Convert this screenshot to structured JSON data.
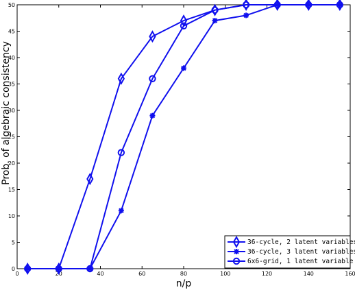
{
  "chart_data": {
    "type": "line",
    "xlabel": "n/p",
    "ylabel": "Prob. of algebraic consistency",
    "xlim": [
      0,
      160
    ],
    "ylim": [
      0,
      50
    ],
    "xticks": [
      0,
      20,
      40,
      60,
      80,
      100,
      120,
      140,
      160
    ],
    "yticks": [
      0,
      5,
      10,
      15,
      20,
      25,
      30,
      35,
      40,
      45,
      50
    ],
    "grid": false,
    "legend": "bottom-right",
    "line_color": "#1010ee",
    "series": [
      {
        "name": "36-cycle, 2 latent variables",
        "marker": "diamond",
        "x": [
          5,
          20,
          35,
          50,
          65,
          80,
          95,
          110,
          125,
          140,
          155
        ],
        "y": [
          0,
          0,
          17,
          36,
          44,
          47,
          49,
          50,
          50,
          50,
          50
        ]
      },
      {
        "name": "36-cycle, 3 latent variables",
        "marker": "star",
        "x": [
          5,
          20,
          35,
          50,
          65,
          80,
          95,
          110,
          125,
          140,
          155
        ],
        "y": [
          0,
          0,
          0,
          11,
          29,
          38,
          47,
          48,
          50,
          50,
          50
        ]
      },
      {
        "name": "6x6-grid, 1 latent variable",
        "marker": "circle",
        "x": [
          5,
          20,
          35,
          50,
          65,
          80,
          95,
          110,
          125,
          140,
          155
        ],
        "y": [
          0,
          0,
          0,
          22,
          36,
          46,
          49,
          50,
          50,
          50,
          50
        ]
      }
    ]
  }
}
